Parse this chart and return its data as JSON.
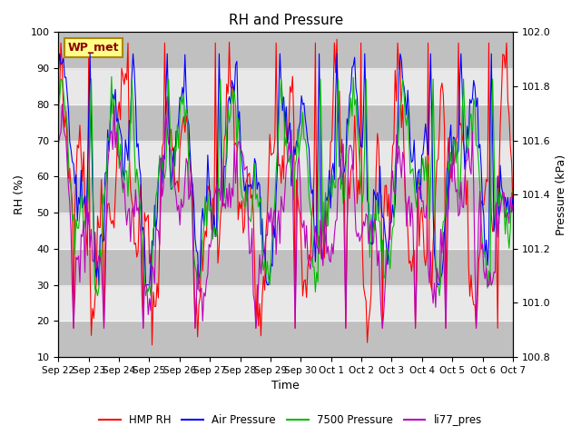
{
  "title": "RH and Pressure",
  "xlabel": "Time",
  "ylabel_left": "RH (%)",
  "ylabel_right": "Pressure (kPa)",
  "ylim_left": [
    10,
    100
  ],
  "ylim_right": [
    100.8,
    102.0
  ],
  "station_label": "WP_met",
  "legend_entries": [
    "HMP RH",
    "Air Pressure",
    "7500 Pressure",
    "li77_pres"
  ],
  "line_colors": [
    "#FF0000",
    "#0000FF",
    "#00BB00",
    "#BB00BB"
  ],
  "background_color": "#FFFFFF",
  "plot_bg_color": "#D8D8D8",
  "x_tick_labels": [
    "Sep 22",
    "Sep 23",
    "Sep 24",
    "Sep 25",
    "Sep 26",
    "Sep 27",
    "Sep 28",
    "Sep 29",
    "Sep 30",
    "Oct 1",
    "Oct 2",
    "Oct 3",
    "Oct 4",
    "Oct 5",
    "Oct 6",
    "Oct 7"
  ],
  "x_tick_positions": [
    0,
    1,
    2,
    3,
    4,
    5,
    6,
    7,
    8,
    9,
    10,
    11,
    12,
    13,
    14,
    15
  ],
  "rh_yticks": [
    10,
    20,
    30,
    40,
    50,
    60,
    70,
    80,
    90,
    100
  ],
  "pres_yticks": [
    100.8,
    101.0,
    101.2,
    101.4,
    101.6,
    101.8,
    102.0
  ],
  "figsize": [
    6.4,
    4.8
  ],
  "dpi": 100
}
